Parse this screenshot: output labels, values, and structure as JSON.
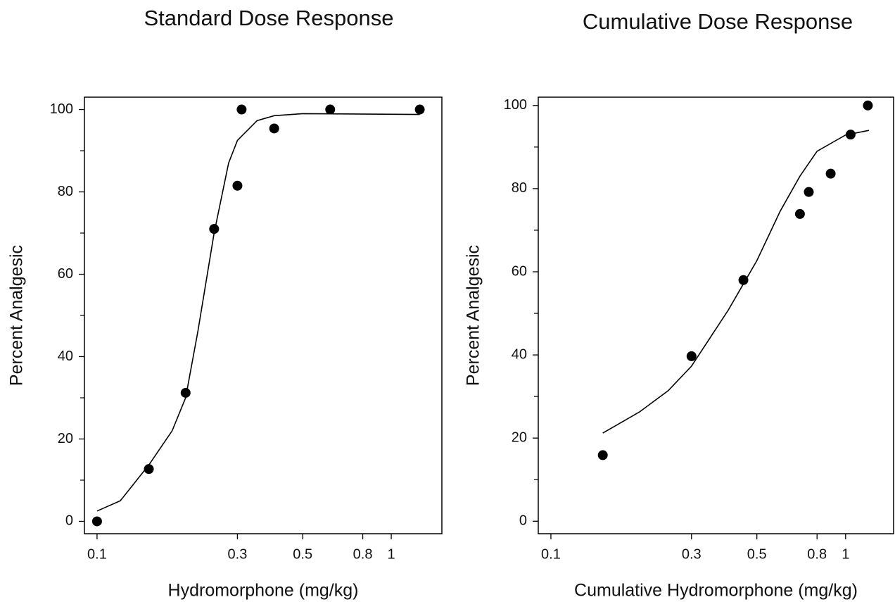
{
  "chart_data": [
    {
      "type": "scatter",
      "title": "Standard Dose Response",
      "xlabel": "Hydromorphone (mg/kg)",
      "ylabel": "Percent Analgesic",
      "xscale": "log",
      "xlim": [
        0.0906,
        1.486
      ],
      "ylim": [
        -3,
        103
      ],
      "xticks": [
        0.1,
        0.3,
        0.5,
        0.8,
        1
      ],
      "yticks": [
        0,
        20,
        40,
        60,
        80,
        100
      ],
      "yminor": [
        10,
        30,
        50,
        70,
        90
      ],
      "series": [
        {
          "style": "markers",
          "color": "#000000",
          "x": [
            0.1,
            0.15,
            0.2,
            0.25,
            0.3,
            0.31,
            0.4,
            0.62,
            1.25
          ],
          "values": [
            0,
            12.7,
            31.2,
            71,
            81.5,
            100,
            95.4,
            100,
            100
          ]
        },
        {
          "style": "line",
          "color": "#000000",
          "x": [
            0.1,
            0.12,
            0.15,
            0.18,
            0.2,
            0.22,
            0.25,
            0.28,
            0.3,
            0.35,
            0.4,
            0.5,
            1.25
          ],
          "values": [
            2.5,
            5,
            13.7,
            22,
            30,
            46,
            70,
            87,
            92.5,
            97.3,
            98.5,
            99,
            98.8
          ]
        }
      ]
    },
    {
      "type": "scatter",
      "title": "Cumulative Dose Response",
      "xlabel": "Cumulative Hydromorphone (mg/kg)",
      "ylabel": "Percent Analgesic",
      "xscale": "log",
      "xlim": [
        0.0906,
        1.455
      ],
      "ylim": [
        -3,
        102
      ],
      "xticks": [
        0.1,
        0.3,
        0.5,
        0.8,
        1
      ],
      "yticks": [
        0,
        20,
        40,
        60,
        80,
        100
      ],
      "yminor": [
        10,
        30,
        50,
        70,
        90
      ],
      "series": [
        {
          "style": "markers",
          "color": "#000000",
          "x": [
            0.15,
            0.3,
            0.45,
            0.7,
            0.75,
            0.89,
            1.04,
            1.19
          ],
          "values": [
            15.9,
            39.7,
            58,
            73.9,
            79.2,
            83.6,
            93,
            100
          ]
        },
        {
          "style": "line",
          "color": "#000000",
          "x": [
            0.15,
            0.2,
            0.25,
            0.3,
            0.4,
            0.5,
            0.6,
            0.7,
            0.8,
            1.0,
            1.2
          ],
          "values": [
            21.2,
            26.3,
            31.4,
            37.3,
            50.8,
            62.7,
            74.6,
            83,
            89,
            92.9,
            94
          ]
        }
      ]
    }
  ]
}
